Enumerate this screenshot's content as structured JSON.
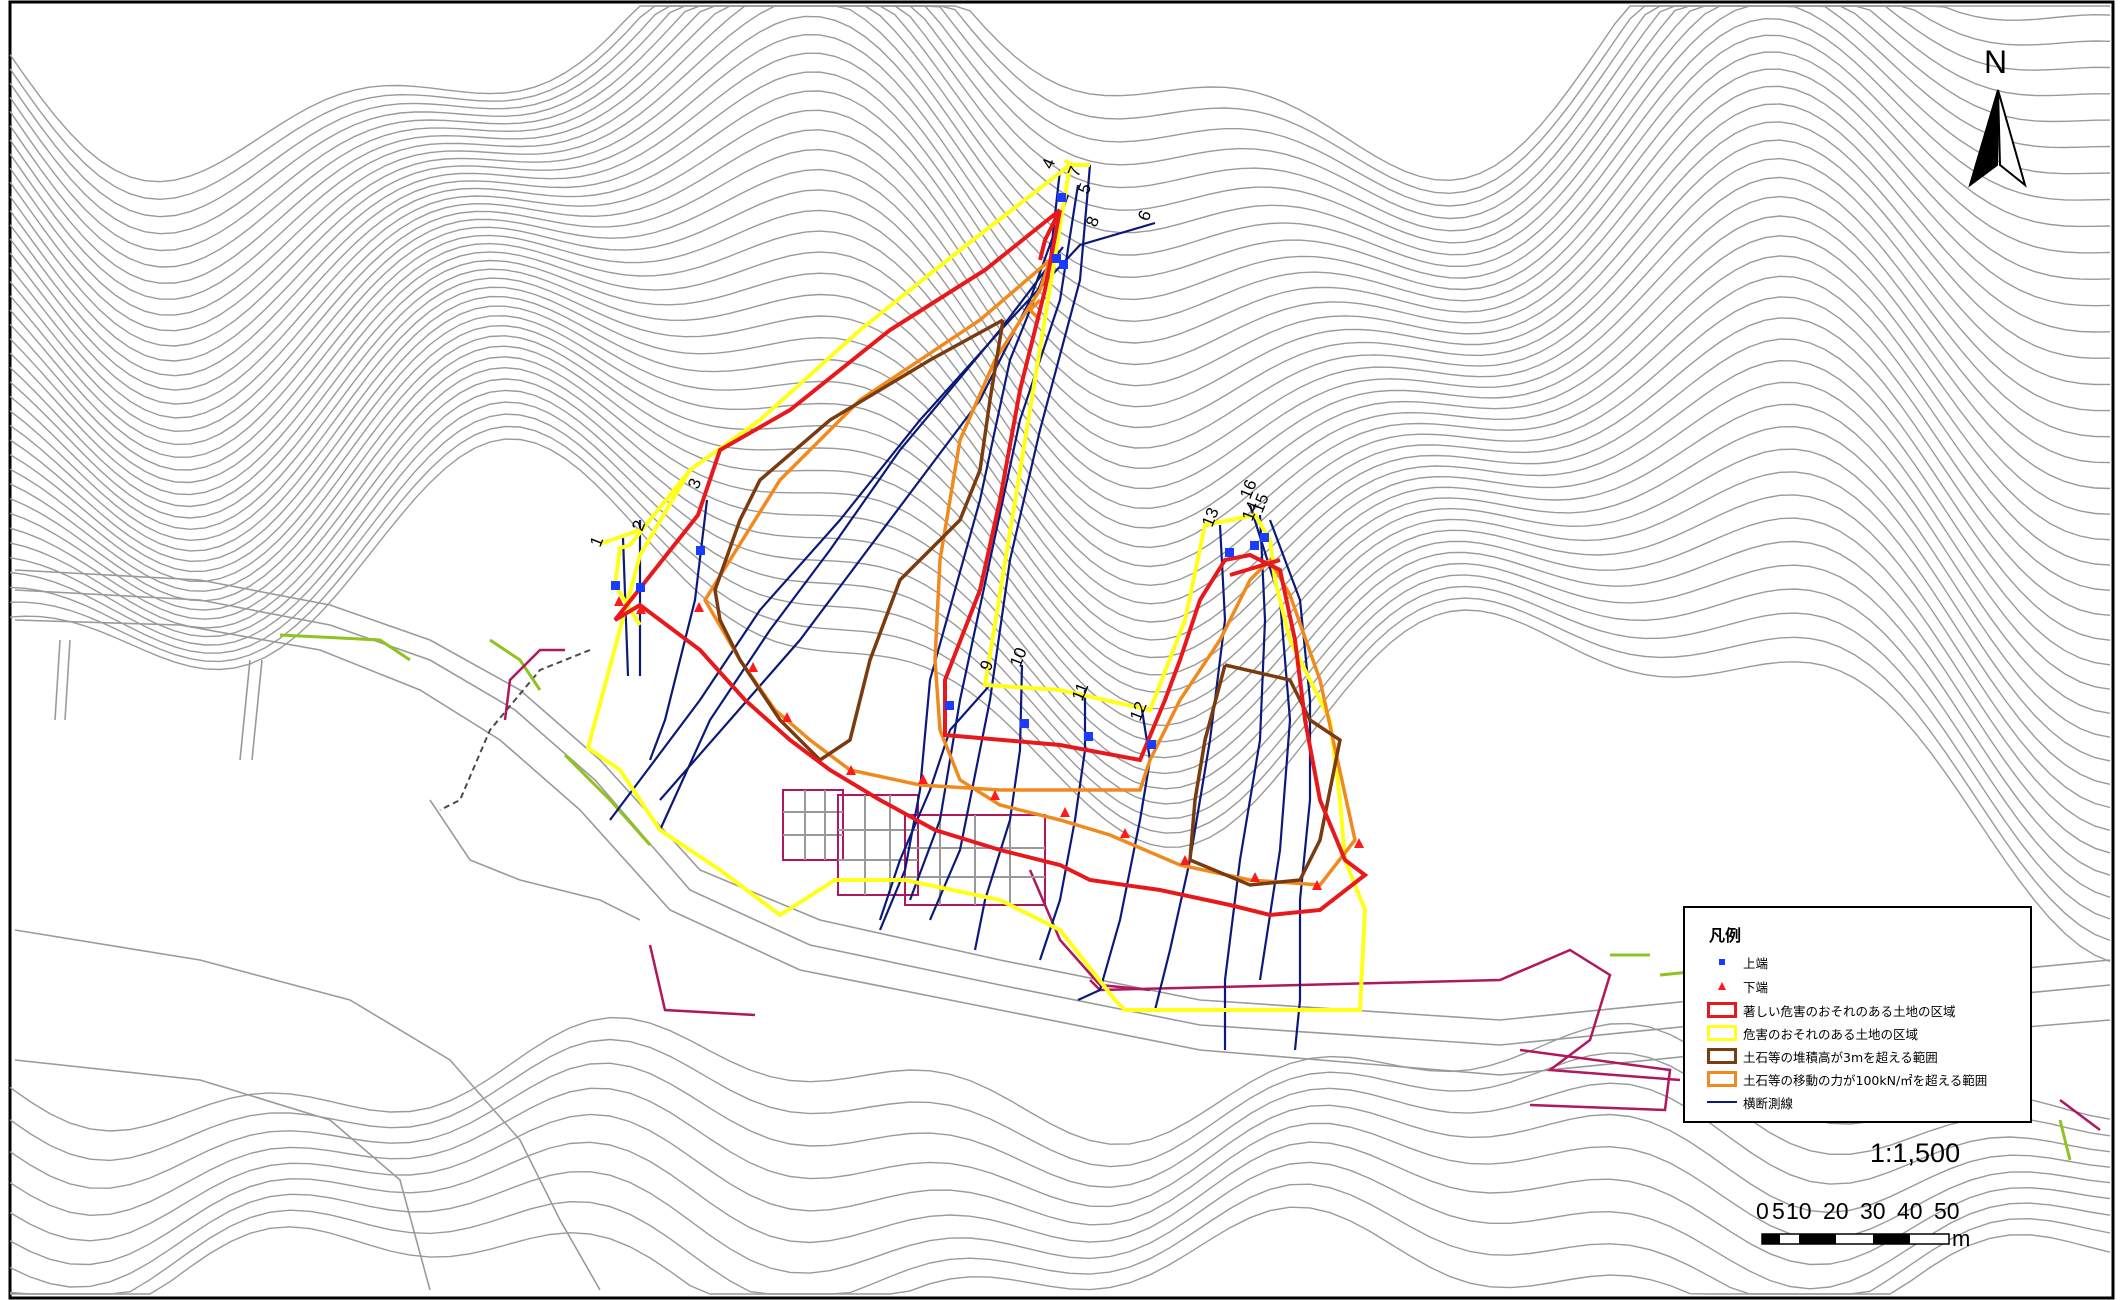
{
  "north": {
    "label": "N"
  },
  "legend": {
    "title": "凡例",
    "items": [
      {
        "label": "上端",
        "symbol": "blue-square",
        "color": "#1a3cff"
      },
      {
        "label": "下端",
        "symbol": "red-triangle",
        "color": "#ff1a1a"
      },
      {
        "label": "著しい危害のおそれのある土地の区域",
        "symbol": "box",
        "color": "#e8191c"
      },
      {
        "label": "危害のおそれのある土地の区域",
        "symbol": "box",
        "color": "#ffff1a"
      },
      {
        "label": "土石等の堆積高が3mを超える範囲",
        "symbol": "box",
        "color": "#7a3b10"
      },
      {
        "label": "土石等の移動の力が100kN/㎡を超える範囲",
        "symbol": "box",
        "color": "#f08a1e"
      },
      {
        "label": "横断測線",
        "symbol": "line",
        "color": "#0b1a7a"
      }
    ]
  },
  "scale": {
    "ratio": "1:1,500",
    "tick_labels": [
      "0",
      "5",
      "10",
      "20",
      "30",
      "40",
      "50"
    ],
    "unit": "m"
  },
  "section_labels": [
    "1",
    "2",
    "3",
    "4",
    "5",
    "6",
    "7",
    "8",
    "9",
    "10",
    "11",
    "12",
    "13",
    "14",
    "15",
    "16"
  ]
}
